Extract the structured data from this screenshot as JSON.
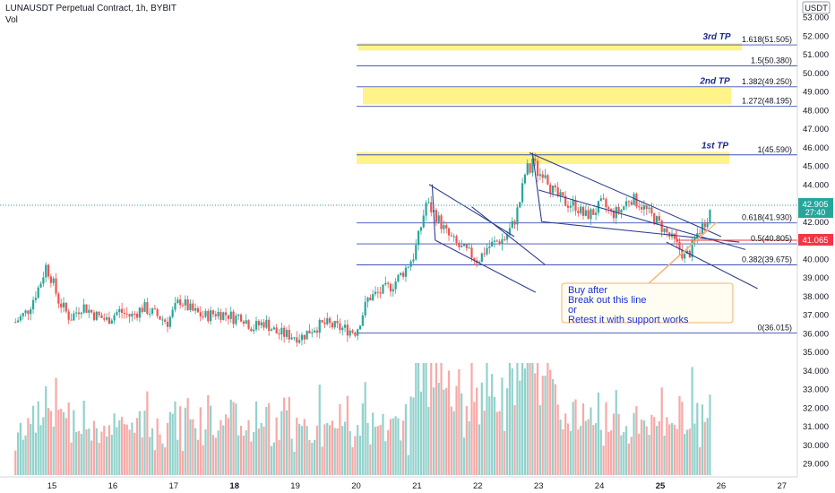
{
  "header": {
    "title": "LUNAUSDT Perpetual Contract, 1h, BYBIT",
    "indicator": "Vol"
  },
  "currency_badge": "USDT",
  "colors": {
    "up": "#26a69a",
    "down": "#ef5350",
    "tp_zone": "#fff176",
    "fib_line": "#3f51b5",
    "channel": "#2f3f8f",
    "price_badge": "#26a69a",
    "level_badge": "#f23645",
    "note_border": "#f7b36b",
    "note_bg": "#fffdf2",
    "note_text": "#1b2fd6"
  },
  "tp_labels": [
    "3rd TP",
    "2nd TP",
    "1st TP"
  ],
  "fib_levels": [
    {
      "label": "1.618(51.505)",
      "value": 51.505
    },
    {
      "label": "1.5(50.380)",
      "value": 50.38
    },
    {
      "label": "1.382(49.250)",
      "value": 49.25
    },
    {
      "label": "1.272(48.195)",
      "value": 48.195
    },
    {
      "label": "1(45.590)",
      "value": 45.59
    },
    {
      "label": "0.618(41.930)",
      "value": 41.93
    },
    {
      "label": "0.5(40.805)",
      "value": 40.805
    },
    {
      "label": "0.382(39.675)",
      "value": 39.675
    },
    {
      "label": "0(36.015)",
      "value": 36.015
    }
  ],
  "tp_zones": [
    {
      "name": "3rd TP",
      "from": 51.2,
      "to": 51.6
    },
    {
      "name": "2nd TP",
      "from": 48.3,
      "to": 49.2
    },
    {
      "name": "1st TP",
      "from": 45.1,
      "to": 45.75
    }
  ],
  "note": {
    "lines": [
      "Buy after",
      "Break out this line",
      "or",
      "Retest it with support works"
    ]
  },
  "badges": {
    "price": "42.905",
    "timer": "27:40",
    "level": "41.065"
  },
  "chart_data": {
    "type": "candlestick",
    "title": "LUNAUSDT Perpetual Contract, 1h, BYBIT",
    "y_axis": {
      "ticks": [
        "53.000",
        "52.000",
        "51.000",
        "50.000",
        "49.000",
        "48.000",
        "47.000",
        "46.000",
        "45.000",
        "44.000",
        "43.000",
        "42.000",
        "41.000",
        "40.000",
        "39.000",
        "38.000",
        "37.000",
        "36.000",
        "35.000",
        "34.000",
        "33.000",
        "32.000",
        "31.000",
        "30.000",
        "29.000"
      ],
      "range": [
        28.5,
        53.0
      ]
    },
    "x_axis": {
      "ticks": [
        "15",
        "16",
        "17",
        "18",
        "19",
        "20",
        "21",
        "22",
        "23",
        "24",
        "25",
        "26",
        "27"
      ],
      "range_days": [
        14.4,
        27.0
      ]
    },
    "price_path": [
      [
        14.4,
        36.6
      ],
      [
        14.6,
        37.2
      ],
      [
        14.8,
        38.6
      ],
      [
        14.9,
        39.6
      ],
      [
        15.0,
        38.9
      ],
      [
        15.1,
        37.8
      ],
      [
        15.2,
        37.3
      ],
      [
        15.3,
        36.8
      ],
      [
        15.5,
        37.5
      ],
      [
        15.7,
        37.0
      ],
      [
        15.9,
        36.7
      ],
      [
        16.1,
        37.2
      ],
      [
        16.3,
        36.9
      ],
      [
        16.5,
        37.4
      ],
      [
        16.7,
        37.0
      ],
      [
        16.9,
        36.6
      ],
      [
        17.1,
        37.8
      ],
      [
        17.3,
        37.2
      ],
      [
        17.5,
        36.9
      ],
      [
        17.7,
        37.1
      ],
      [
        17.9,
        37.0
      ],
      [
        18.0,
        36.8
      ],
      [
        18.1,
        37.0
      ],
      [
        18.3,
        36.3
      ],
      [
        18.5,
        36.6
      ],
      [
        18.7,
        36.0
      ],
      [
        18.9,
        35.9
      ],
      [
        19.1,
        35.8
      ],
      [
        19.3,
        36.3
      ],
      [
        19.5,
        36.5
      ],
      [
        19.7,
        36.3
      ],
      [
        19.85,
        36.2
      ],
      [
        20.0,
        36.1
      ],
      [
        20.2,
        37.9
      ],
      [
        20.4,
        38.2
      ],
      [
        20.6,
        38.6
      ],
      [
        20.8,
        39.4
      ],
      [
        20.95,
        40.2
      ],
      [
        21.05,
        41.5
      ],
      [
        21.15,
        43.0
      ],
      [
        21.3,
        42.4
      ],
      [
        21.5,
        41.3
      ],
      [
        21.7,
        40.6
      ],
      [
        21.9,
        40.2
      ],
      [
        22.0,
        39.9
      ],
      [
        22.15,
        40.6
      ],
      [
        22.3,
        40.9
      ],
      [
        22.45,
        41.1
      ],
      [
        22.6,
        42.0
      ],
      [
        22.7,
        43.2
      ],
      [
        22.8,
        45.0
      ],
      [
        22.85,
        44.6
      ],
      [
        22.9,
        45.4
      ],
      [
        23.0,
        44.5
      ],
      [
        23.1,
        44.8
      ],
      [
        23.2,
        43.8
      ],
      [
        23.3,
        43.4
      ],
      [
        23.45,
        43.0
      ],
      [
        23.6,
        42.9
      ],
      [
        23.75,
        42.3
      ],
      [
        23.9,
        42.5
      ],
      [
        24.05,
        43.0
      ],
      [
        24.2,
        42.4
      ],
      [
        24.35,
        42.6
      ],
      [
        24.5,
        43.3
      ],
      [
        24.65,
        43.0
      ],
      [
        24.8,
        42.5
      ],
      [
        24.95,
        42.0
      ],
      [
        25.05,
        41.6
      ],
      [
        25.15,
        41.2
      ],
      [
        25.3,
        40.6
      ],
      [
        25.4,
        40.1
      ],
      [
        25.5,
        40.4
      ],
      [
        25.6,
        41.3
      ],
      [
        25.7,
        41.8
      ],
      [
        25.8,
        42.4
      ],
      [
        25.85,
        42.9
      ]
    ],
    "volume_range": [
      0,
      4.0
    ]
  }
}
